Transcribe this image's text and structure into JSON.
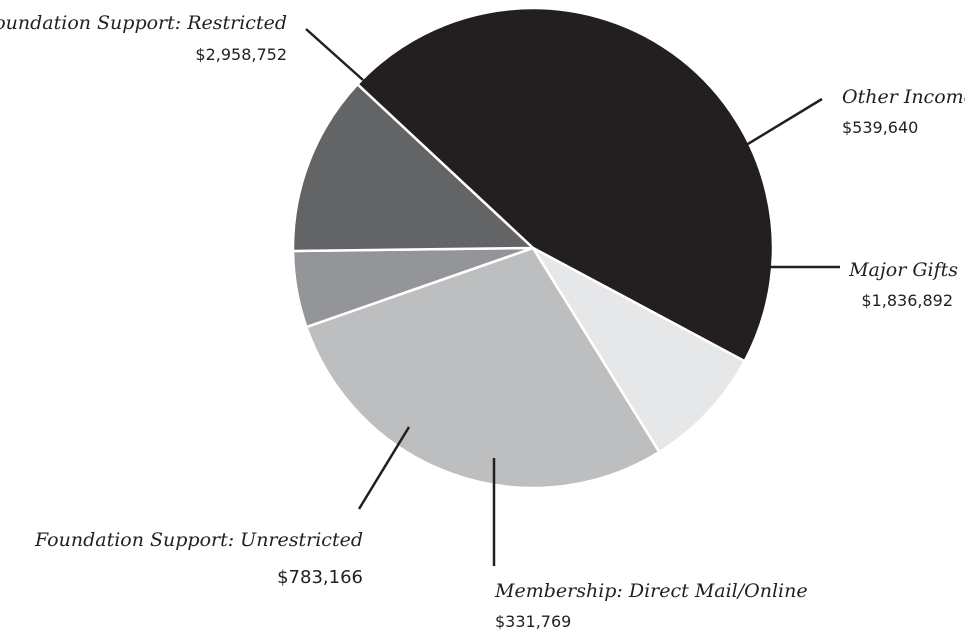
{
  "chart_data": {
    "type": "pie",
    "title": "",
    "slices": [
      {
        "label": "Foundation Support: Restricted",
        "value": 2958752,
        "value_label": "$2,958,752",
        "color": "#231f20"
      },
      {
        "label": "Other Income",
        "value": 539640,
        "value_label": "$539,640",
        "color": "#e6e7e8"
      },
      {
        "label": "Major Gifts",
        "value": 1836892,
        "value_label": "$1,836,892",
        "color": "#bcbec0"
      },
      {
        "label": "Membership: Direct Mail/Online",
        "value": 331769,
        "value_label": "$331,769",
        "color": "#939598"
      },
      {
        "label": "Foundation Support: Unrestricted",
        "value": 783166,
        "value_label": "$783,166",
        "color": "#636466"
      }
    ]
  }
}
